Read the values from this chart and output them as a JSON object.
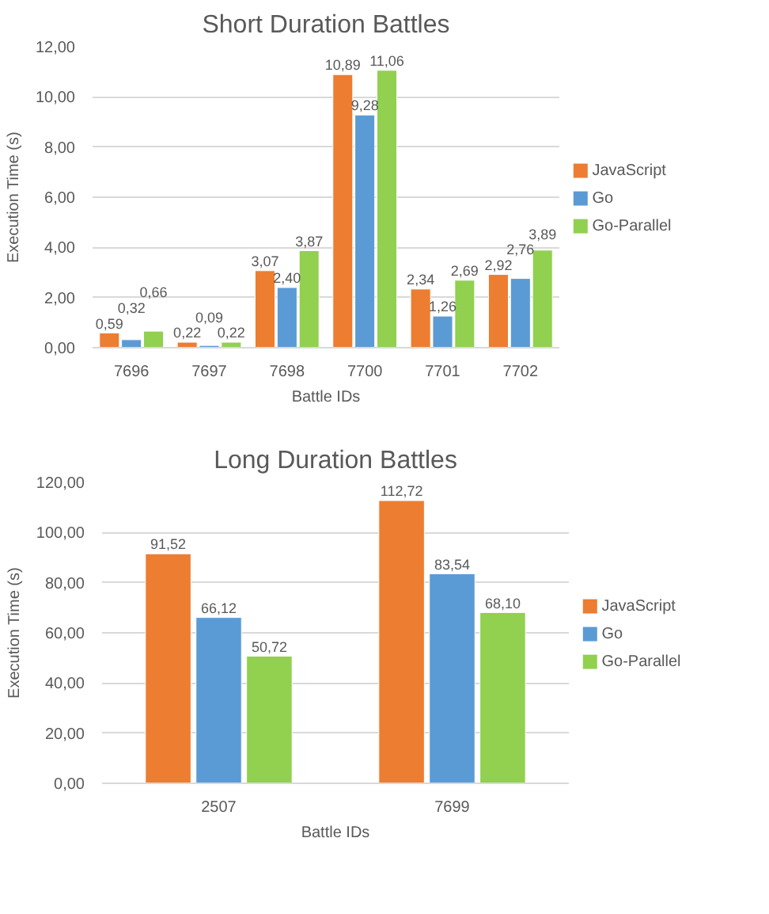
{
  "chart_data": [
    {
      "type": "bar",
      "title": "Short Duration Battles",
      "xlabel": "Battle IDs",
      "ylabel": "Execution Time (s)",
      "categories": [
        "7696",
        "7697",
        "7698",
        "7700",
        "7701",
        "7702"
      ],
      "series": [
        {
          "name": "JavaScript",
          "color": "#ed7d31",
          "values": [
            0.59,
            0.22,
            3.07,
            10.89,
            2.34,
            2.92
          ],
          "value_labels": [
            "0,59",
            "0,22",
            "3,07",
            "10,89",
            "2,34",
            "2,92"
          ]
        },
        {
          "name": "Go",
          "color": "#5b9bd5",
          "values": [
            0.32,
            0.09,
            2.4,
            9.28,
            1.26,
            2.76
          ],
          "value_labels": [
            "0,32",
            "0,09",
            "2,40",
            "9,28",
            "1,26",
            "2,76"
          ]
        },
        {
          "name": "Go-Parallel",
          "color": "#92d050",
          "values": [
            0.66,
            0.22,
            3.87,
            11.06,
            2.69,
            3.89
          ],
          "value_labels": [
            "0,66",
            "0,22",
            "3,87",
            "11,06",
            "2,69",
            "3,89"
          ]
        }
      ],
      "ylim": [
        0,
        12
      ],
      "yticks": [
        {
          "value": 0,
          "label": "0,00"
        },
        {
          "value": 2,
          "label": "2,00"
        },
        {
          "value": 4,
          "label": "4,00"
        },
        {
          "value": 6,
          "label": "6,00"
        },
        {
          "value": 8,
          "label": "8,00"
        },
        {
          "value": 10,
          "label": "10,00"
        },
        {
          "value": 12,
          "label": "12,00"
        }
      ],
      "grid": "y",
      "legend": "right"
    },
    {
      "type": "bar",
      "title": "Long Duration Battles",
      "xlabel": "Battle IDs",
      "ylabel": "Execution Time (s)",
      "categories": [
        "2507",
        "7699"
      ],
      "series": [
        {
          "name": "JavaScript",
          "color": "#ed7d31",
          "values": [
            91.52,
            112.72
          ],
          "value_labels": [
            "91,52",
            "112,72"
          ]
        },
        {
          "name": "Go",
          "color": "#5b9bd5",
          "values": [
            66.12,
            83.54
          ],
          "value_labels": [
            "66,12",
            "83,54"
          ]
        },
        {
          "name": "Go-Parallel",
          "color": "#92d050",
          "values": [
            50.72,
            68.1
          ],
          "value_labels": [
            "50,72",
            "68,10"
          ]
        }
      ],
      "ylim": [
        0,
        120
      ],
      "yticks": [
        {
          "value": 0,
          "label": "0,00"
        },
        {
          "value": 20,
          "label": "20,00"
        },
        {
          "value": 40,
          "label": "40,00"
        },
        {
          "value": 60,
          "label": "60,00"
        },
        {
          "value": 80,
          "label": "80,00"
        },
        {
          "value": 100,
          "label": "100,00"
        },
        {
          "value": 120,
          "label": "120,00"
        }
      ],
      "grid": "y",
      "legend": "right"
    }
  ]
}
